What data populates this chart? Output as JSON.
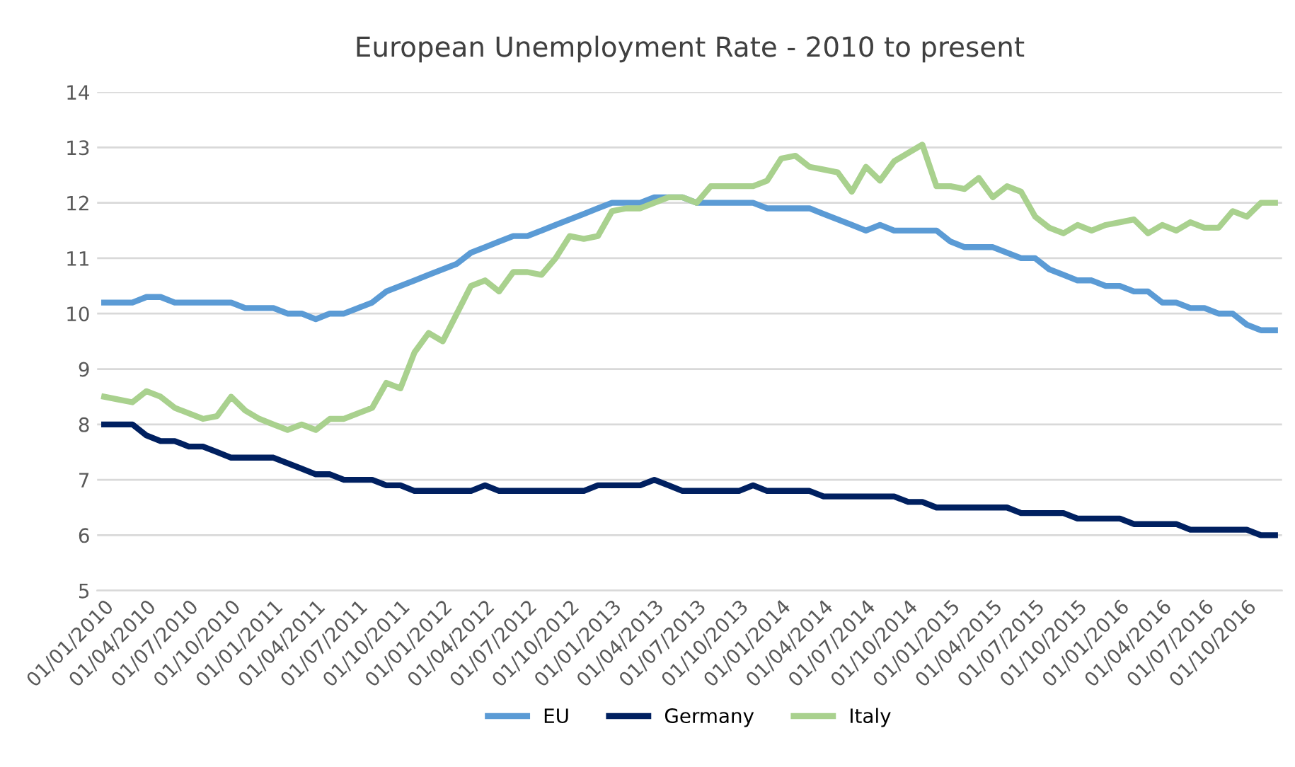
{
  "chart_data": {
    "type": "line",
    "title": "European Unemployment Rate - 2010 to present",
    "categories": [
      "01/01/2010",
      null,
      null,
      "01/04/2010",
      null,
      null,
      "01/07/2010",
      null,
      null,
      "01/10/2010",
      null,
      null,
      "01/01/2011",
      null,
      null,
      "01/04/2011",
      null,
      null,
      "01/07/2011",
      null,
      null,
      "01/10/2011",
      null,
      null,
      "01/01/2012",
      null,
      null,
      "01/04/2012",
      null,
      null,
      "01/07/2012",
      null,
      null,
      "01/10/2012",
      null,
      null,
      "01/01/2013",
      null,
      null,
      "01/04/2013",
      null,
      null,
      "01/07/2013",
      null,
      null,
      "01/10/2013",
      null,
      null,
      "01/01/2014",
      null,
      null,
      "01/04/2014",
      null,
      null,
      "01/07/2014",
      null,
      null,
      "01/10/2014",
      null,
      null,
      "01/01/2015",
      null,
      null,
      "01/04/2015",
      null,
      null,
      "01/07/2015",
      null,
      null,
      "01/10/2015",
      null,
      null,
      "01/01/2016",
      null,
      null,
      "01/04/2016",
      null,
      null,
      "01/07/2016",
      null,
      null,
      "01/10/2016",
      null,
      null
    ],
    "series": [
      {
        "name": "EU",
        "color": "#5b9bd5",
        "values": [
          10.2,
          10.2,
          10.2,
          10.3,
          10.3,
          10.2,
          10.2,
          10.2,
          10.2,
          10.2,
          10.1,
          10.1,
          10.1,
          10.0,
          10.0,
          9.9,
          10.0,
          10.0,
          10.1,
          10.2,
          10.4,
          10.5,
          10.6,
          10.7,
          10.8,
          10.9,
          11.1,
          11.2,
          11.3,
          11.4,
          11.4,
          11.5,
          11.6,
          11.7,
          11.8,
          11.9,
          12.0,
          12.0,
          12.0,
          12.1,
          12.1,
          12.1,
          12.0,
          12.0,
          12.0,
          12.0,
          12.0,
          11.9,
          11.9,
          11.9,
          11.9,
          11.8,
          11.7,
          11.6,
          11.5,
          11.6,
          11.5,
          11.5,
          11.5,
          11.5,
          11.3,
          11.2,
          11.2,
          11.2,
          11.1,
          11.0,
          11.0,
          10.8,
          10.7,
          10.6,
          10.6,
          10.5,
          10.5,
          10.4,
          10.4,
          10.2,
          10.2,
          10.1,
          10.1,
          10.0,
          10.0,
          9.8,
          9.7,
          9.7
        ]
      },
      {
        "name": "Germany",
        "color": "#002060",
        "values": [
          8.0,
          8.0,
          8.0,
          7.8,
          7.7,
          7.7,
          7.6,
          7.6,
          7.5,
          7.4,
          7.4,
          7.4,
          7.4,
          7.3,
          7.2,
          7.1,
          7.1,
          7.0,
          7.0,
          7.0,
          6.9,
          6.9,
          6.8,
          6.8,
          6.8,
          6.8,
          6.8,
          6.9,
          6.8,
          6.8,
          6.8,
          6.8,
          6.8,
          6.8,
          6.8,
          6.9,
          6.9,
          6.9,
          6.9,
          7.0,
          6.9,
          6.8,
          6.8,
          6.8,
          6.8,
          6.8,
          6.9,
          6.8,
          6.8,
          6.8,
          6.8,
          6.7,
          6.7,
          6.7,
          6.7,
          6.7,
          6.7,
          6.6,
          6.6,
          6.5,
          6.5,
          6.5,
          6.5,
          6.5,
          6.5,
          6.4,
          6.4,
          6.4,
          6.4,
          6.3,
          6.3,
          6.3,
          6.3,
          6.2,
          6.2,
          6.2,
          6.2,
          6.1,
          6.1,
          6.1,
          6.1,
          6.1,
          6.0,
          6.0
        ]
      },
      {
        "name": "Italy",
        "color": "#a9d18e",
        "values": [
          8.5,
          8.45,
          8.4,
          8.6,
          8.5,
          8.3,
          8.2,
          8.1,
          8.15,
          8.5,
          8.25,
          8.1,
          8.0,
          7.9,
          8.0,
          7.9,
          8.1,
          8.1,
          8.2,
          8.3,
          8.75,
          8.65,
          9.3,
          9.65,
          9.5,
          10.0,
          10.5,
          10.6,
          10.4,
          10.75,
          10.75,
          10.7,
          11.0,
          11.4,
          11.35,
          11.4,
          11.85,
          11.9,
          11.9,
          12.0,
          12.1,
          12.1,
          12.0,
          12.3,
          12.3,
          12.3,
          12.3,
          12.4,
          12.8,
          12.85,
          12.65,
          12.6,
          12.55,
          12.2,
          12.65,
          12.4,
          12.75,
          12.9,
          13.05,
          12.3,
          12.3,
          12.25,
          12.45,
          12.1,
          12.3,
          12.2,
          11.75,
          11.55,
          11.45,
          11.6,
          11.5,
          11.6,
          11.65,
          11.7,
          11.45,
          11.6,
          11.5,
          11.65,
          11.55,
          11.55,
          11.85,
          11.75,
          12.0,
          12.0
        ]
      }
    ],
    "ylim": [
      5,
      14
    ],
    "yticks": [
      5,
      6,
      7,
      8,
      9,
      10,
      11,
      12,
      13,
      14
    ],
    "grid": "y",
    "legend": "bottom",
    "marker": "none",
    "line_style": "solid"
  }
}
